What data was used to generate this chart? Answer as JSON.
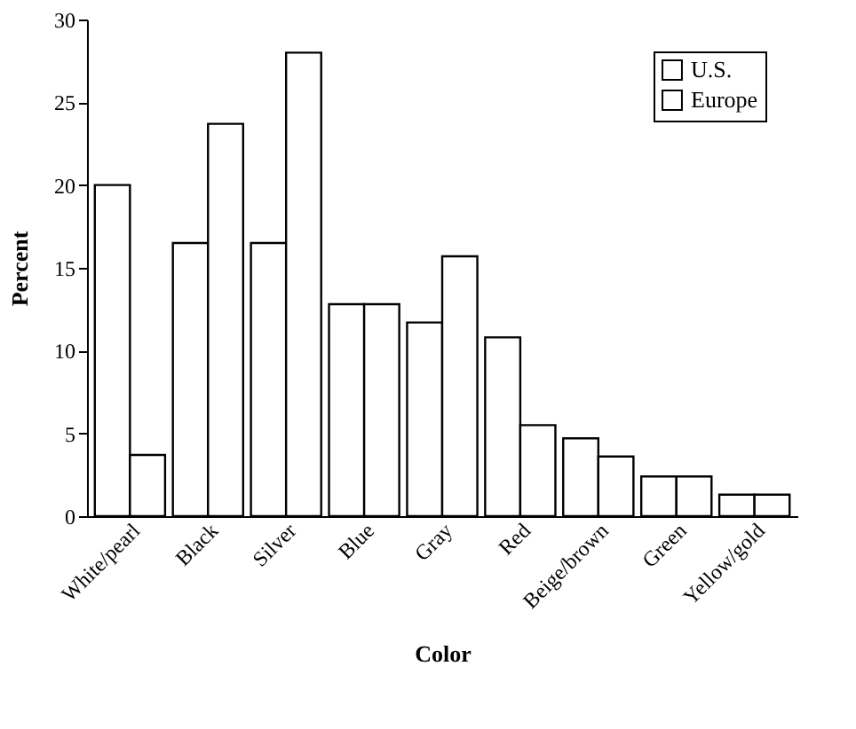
{
  "chart_data": {
    "type": "bar",
    "xlabel": "Color",
    "ylabel": "Percent",
    "categories": [
      "White/pearl",
      "Black",
      "Silver",
      "Blue",
      "Gray",
      "Red",
      "Beige/brown",
      "Green",
      "Yellow/gold"
    ],
    "series": [
      {
        "name": "U.S.",
        "color": "#ffffff",
        "values": [
          20,
          16.5,
          16.5,
          12.8,
          11.7,
          10.8,
          4.7,
          2.4,
          1.3
        ]
      },
      {
        "name": "Europe",
        "color": "#ffffff",
        "values": [
          3.7,
          23.7,
          28,
          12.8,
          15.7,
          5.5,
          3.6,
          2.4,
          1.3
        ]
      }
    ],
    "ylim": [
      0,
      30
    ],
    "yticks": [
      0,
      5,
      10,
      15,
      20,
      25,
      30
    ],
    "grid": false,
    "legend": "top right"
  }
}
